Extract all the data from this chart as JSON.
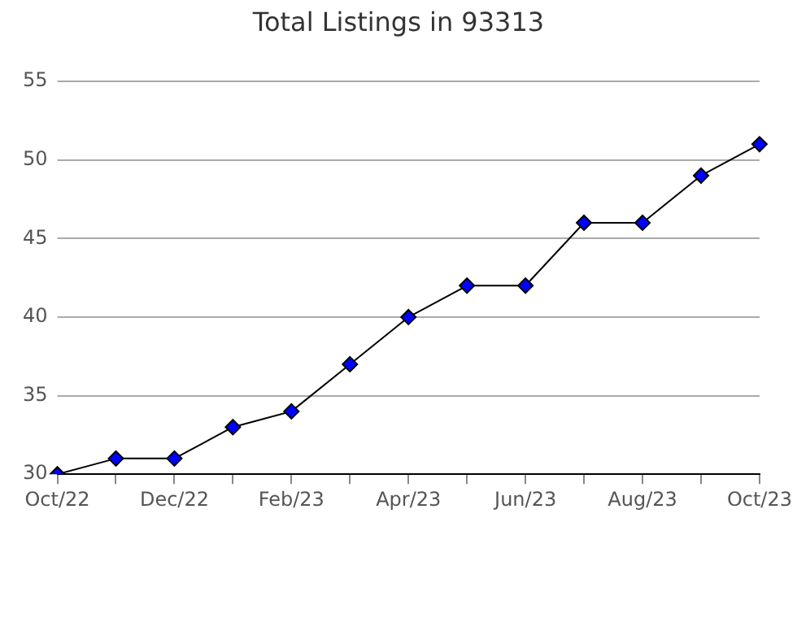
{
  "chart_data": {
    "type": "line",
    "title": "Total Listings in 93313",
    "categories": [
      "Oct/22",
      null,
      "Dec/22",
      null,
      "Feb/23",
      null,
      "Apr/23",
      null,
      "Jun/23",
      null,
      "Aug/23",
      null,
      "Oct/23"
    ],
    "series": [
      {
        "color": "#0000ff",
        "values": [
          30,
          31,
          31,
          33,
          34,
          37,
          40,
          42,
          42,
          46,
          46,
          49,
          51
        ]
      }
    ],
    "ylim": [
      30,
      55
    ],
    "yticks": [
      30,
      35,
      40,
      45,
      50,
      55
    ],
    "grid": "y",
    "legend": false,
    "marker": "diamond",
    "line_style": "solid"
  }
}
